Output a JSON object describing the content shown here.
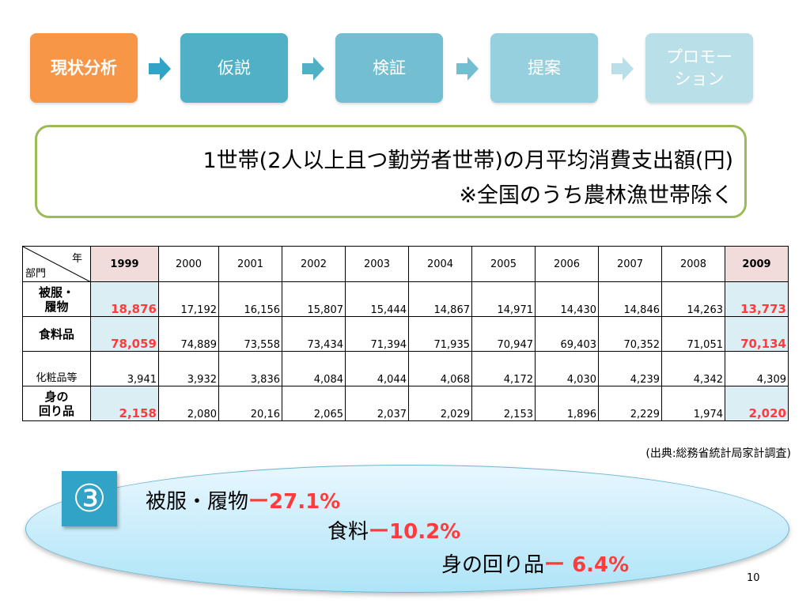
{
  "flow": {
    "steps": [
      {
        "label": "現状分析"
      },
      {
        "label": "仮説"
      },
      {
        "label": "検証"
      },
      {
        "label": "提案"
      },
      {
        "label_line1": "プロモー",
        "label_line2": "ション"
      }
    ],
    "colors": {
      "active": "#f79646",
      "step1": "#4fb0c6",
      "step2": "#73bfd1",
      "step3": "#96cfdd",
      "step4": "#b9dfe9"
    }
  },
  "title": {
    "line1": "1世帯(2人以上且つ勤労者世帯)の月平均消費支出額(円)",
    "line2": "※全国のうち農林漁世帯除く"
  },
  "table": {
    "corner_year": "年",
    "corner_category": "部門",
    "years": [
      "1999",
      "2000",
      "2001",
      "2002",
      "2003",
      "2004",
      "2005",
      "2006",
      "2007",
      "2008",
      "2009"
    ],
    "rows": [
      {
        "line1": "被服・",
        "line2": "履物",
        "values": [
          "18,876",
          "17,192",
          "16,156",
          "15,807",
          "15,444",
          "14,867",
          "14,971",
          "14,430",
          "14,846",
          "14,263",
          "13,773"
        ]
      },
      {
        "line1": "食料品",
        "line2": "",
        "values": [
          "78,059",
          "74,889",
          "73,558",
          "73,434",
          "71,394",
          "71,935",
          "70,947",
          "69,403",
          "70,352",
          "71,051",
          "70,134"
        ]
      },
      {
        "line1": "化粧品等",
        "line2": "",
        "values": [
          "3,941",
          "3,932",
          "3,836",
          "4,084",
          "4,044",
          "4,068",
          "4,172",
          "4,030",
          "4,239",
          "4,342",
          "4,309"
        ]
      },
      {
        "line1": "身の",
        "line2": "回り品",
        "values": [
          "2,158",
          "2,080",
          "20,16",
          "2,065",
          "2,037",
          "2,029",
          "2,153",
          "1,896",
          "2,229",
          "1,974",
          "2,020"
        ]
      }
    ]
  },
  "source": "(出典:総務省統計局家計調査)",
  "summary": {
    "badge": "③",
    "items": [
      {
        "label": "被服・履物",
        "pct": "ー27.1%"
      },
      {
        "label": "食料",
        "pct": "ー10.2%"
      },
      {
        "label": "身の回り品",
        "pct": "ー 6.4%"
      }
    ]
  },
  "page_number": "10"
}
